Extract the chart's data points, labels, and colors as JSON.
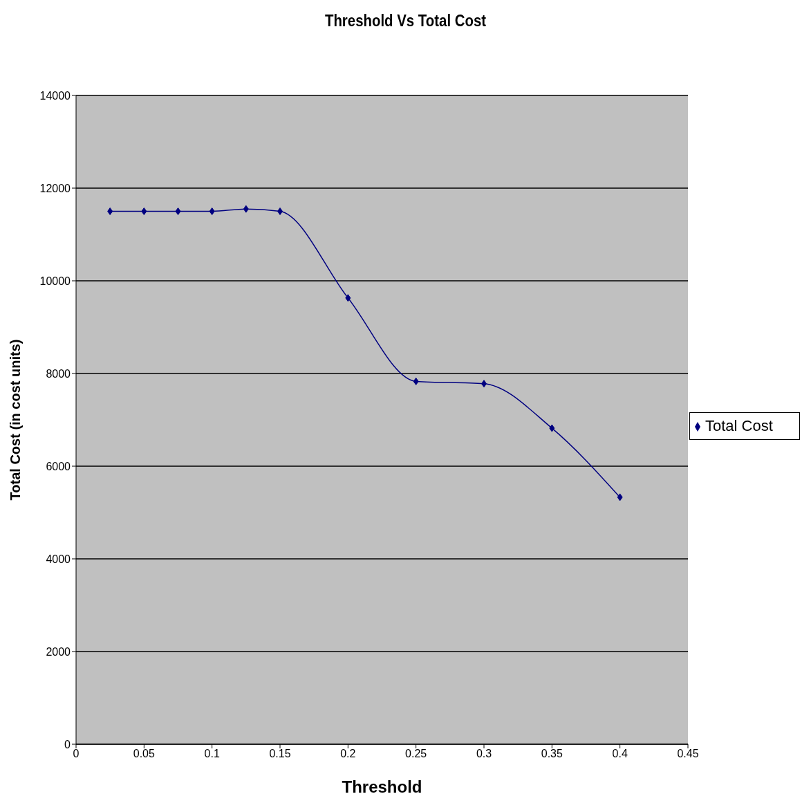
{
  "chart_data": {
    "type": "line",
    "title": "Threshold Vs Total Cost",
    "xlabel": "Threshold",
    "ylabel": "Total Cost (in cost units)",
    "x": [
      0.025,
      0.05,
      0.075,
      0.1,
      0.125,
      0.15,
      0.2,
      0.25,
      0.3,
      0.35,
      0.4
    ],
    "series": [
      {
        "name": "Total Cost",
        "color": "#000080",
        "values": [
          11500,
          11500,
          11500,
          11500,
          11550,
          11500,
          9630,
          7830,
          7780,
          6820,
          5330
        ]
      }
    ],
    "xlim": [
      0,
      0.45
    ],
    "xticks": [
      0,
      0.05,
      0.1,
      0.15,
      0.2,
      0.25,
      0.3,
      0.35,
      0.4,
      0.45
    ],
    "ylim": [
      0,
      14000
    ],
    "yticks": [
      0,
      2000,
      4000,
      6000,
      8000,
      10000,
      12000,
      14000
    ],
    "grid": "y",
    "legend": "right",
    "marker": "diamond",
    "line_style": "solid"
  }
}
